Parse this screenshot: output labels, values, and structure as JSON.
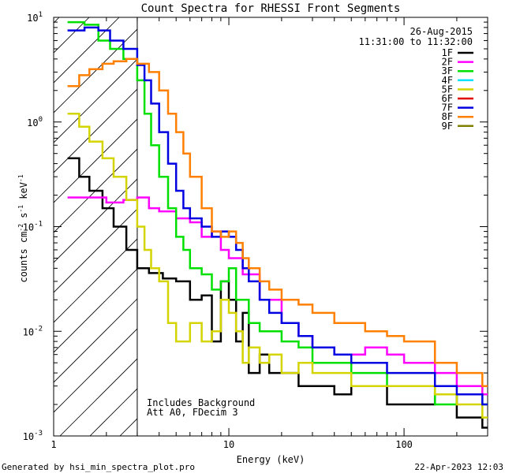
{
  "chart_data": {
    "type": "line",
    "title": "Count Spectra for RHESSI Front Segments",
    "xlabel": "Energy (keV)",
    "ylabel": {
      "base": "counts cm",
      "exp1": "-2",
      "mid": " s",
      "exp2": "-1",
      "tail": " keV",
      "exp3": "-1"
    },
    "xscale": "log",
    "yscale": "log",
    "xlim": [
      1,
      300
    ],
    "ylim": [
      0.001,
      10
    ],
    "x_major_ticks": [
      1,
      10,
      100
    ],
    "x_major_labels": [
      "1",
      "10",
      "100"
    ],
    "y_major_ticks": [
      0.001,
      0.01,
      0.1,
      1,
      10
    ],
    "y_major_labels": [
      {
        "base": "10",
        "exp": "-3"
      },
      {
        "base": "10",
        "exp": "-2"
      },
      {
        "base": "10",
        "exp": "-1"
      },
      {
        "base": "10",
        "exp": "0"
      },
      {
        "base": "10",
        "exp": "1"
      }
    ],
    "info": {
      "date": "26-Aug-2015",
      "time_range": "11:31:00 to 11:32:00"
    },
    "annotations": [
      "Includes Background",
      "Att A0, FDecim 3"
    ],
    "threshold_energy": 3,
    "legend_position": "top-right",
    "legend": [
      {
        "label": "1F",
        "color": "#000000"
      },
      {
        "label": "2F",
        "color": "#ff00ff"
      },
      {
        "label": "3F",
        "color": "#00e000"
      },
      {
        "label": "4F",
        "color": "#00e0ff"
      },
      {
        "label": "5F",
        "color": "#d4d400"
      },
      {
        "label": "6F",
        "color": "#e00000"
      },
      {
        "label": "7F",
        "color": "#0000e0"
      },
      {
        "label": "8F",
        "color": "#ff8000"
      },
      {
        "label": "9F",
        "color": "#808000"
      }
    ],
    "series": [
      {
        "name": "1F",
        "color": "#000000",
        "x": [
          1.2,
          1.4,
          1.6,
          1.9,
          2.2,
          2.6,
          3.0,
          3.5,
          4.2,
          5.0,
          6.0,
          7.0,
          8.0,
          9.0,
          10,
          11,
          12,
          13,
          15,
          17,
          20,
          25,
          30,
          40,
          50,
          60,
          80,
          100,
          150,
          200,
          280
        ],
        "y": [
          0.45,
          0.3,
          0.22,
          0.15,
          0.1,
          0.06,
          0.04,
          0.036,
          0.032,
          0.03,
          0.02,
          0.022,
          0.008,
          0.03,
          0.02,
          0.008,
          0.015,
          0.004,
          0.006,
          0.004,
          0.004,
          0.003,
          0.003,
          0.0025,
          0.003,
          0.003,
          0.002,
          0.002,
          0.0025,
          0.0015,
          0.0012
        ]
      },
      {
        "name": "2F",
        "color": "#ff00ff",
        "x": [
          1.2,
          1.6,
          2.0,
          2.5,
          3.0,
          3.5,
          4.0,
          5.0,
          6.0,
          7.0,
          8.0,
          9.0,
          10,
          12,
          15,
          20,
          25,
          30,
          40,
          50,
          60,
          80,
          100,
          150,
          200,
          280
        ],
        "y": [
          0.19,
          0.19,
          0.17,
          0.18,
          0.19,
          0.15,
          0.14,
          0.12,
          0.11,
          0.08,
          0.09,
          0.06,
          0.05,
          0.035,
          0.02,
          0.012,
          0.009,
          0.007,
          0.006,
          0.006,
          0.007,
          0.006,
          0.005,
          0.004,
          0.003,
          0.0025
        ]
      },
      {
        "name": "3F",
        "color": "#00e000",
        "x": [
          1.2,
          1.5,
          1.8,
          2.1,
          2.5,
          3.0,
          3.3,
          3.6,
          4.0,
          4.5,
          5.0,
          5.5,
          6.0,
          7.0,
          8.0,
          9.0,
          10,
          11,
          12,
          13,
          15,
          17,
          20,
          25,
          30,
          40,
          50,
          60,
          80,
          100,
          150,
          200,
          280
        ],
        "y": [
          9.0,
          8.5,
          6.0,
          5.0,
          4.0,
          2.5,
          1.2,
          0.6,
          0.3,
          0.15,
          0.08,
          0.06,
          0.04,
          0.035,
          0.025,
          0.03,
          0.04,
          0.02,
          0.02,
          0.012,
          0.01,
          0.01,
          0.008,
          0.007,
          0.005,
          0.005,
          0.004,
          0.004,
          0.003,
          0.003,
          0.002,
          0.0025,
          0.002
        ]
      },
      {
        "name": "5F",
        "color": "#d4d400",
        "x": [
          1.2,
          1.4,
          1.6,
          1.9,
          2.2,
          2.6,
          3.0,
          3.3,
          3.6,
          4.0,
          4.5,
          5.0,
          6.0,
          7.0,
          8.0,
          9.0,
          10,
          11,
          12,
          13,
          15,
          17,
          20,
          25,
          30,
          40,
          50,
          60,
          80,
          100,
          150,
          200,
          280
        ],
        "y": [
          1.2,
          0.9,
          0.65,
          0.45,
          0.3,
          0.18,
          0.1,
          0.06,
          0.04,
          0.03,
          0.012,
          0.008,
          0.012,
          0.008,
          0.01,
          0.02,
          0.015,
          0.01,
          0.005,
          0.007,
          0.005,
          0.006,
          0.004,
          0.005,
          0.004,
          0.004,
          0.003,
          0.003,
          0.003,
          0.003,
          0.0025,
          0.002,
          0.0015
        ]
      },
      {
        "name": "7F",
        "color": "#0000e0",
        "x": [
          1.2,
          1.5,
          1.8,
          2.1,
          2.5,
          3.0,
          3.3,
          3.6,
          4.0,
          4.5,
          5.0,
          5.5,
          6.0,
          7.0,
          8.0,
          9.0,
          10,
          11,
          12,
          13,
          15,
          17,
          20,
          25,
          30,
          40,
          50,
          60,
          80,
          100,
          150,
          200,
          280
        ],
        "y": [
          7.5,
          8.0,
          7.5,
          6.0,
          5.0,
          3.5,
          2.5,
          1.5,
          0.8,
          0.4,
          0.22,
          0.15,
          0.12,
          0.1,
          0.08,
          0.09,
          0.08,
          0.06,
          0.04,
          0.03,
          0.02,
          0.015,
          0.012,
          0.009,
          0.007,
          0.006,
          0.005,
          0.005,
          0.004,
          0.004,
          0.003,
          0.0025,
          0.002
        ]
      },
      {
        "name": "8F",
        "color": "#ff8000",
        "x": [
          1.2,
          1.4,
          1.6,
          1.9,
          2.2,
          2.6,
          3.0,
          3.5,
          4.0,
          4.5,
          5.0,
          5.5,
          6.0,
          7.0,
          8.0,
          9.0,
          10,
          11,
          12,
          13,
          15,
          17,
          20,
          25,
          30,
          40,
          50,
          60,
          80,
          100,
          150,
          200,
          280
        ],
        "y": [
          2.2,
          2.8,
          3.2,
          3.6,
          3.8,
          4.0,
          3.6,
          3.0,
          2.0,
          1.2,
          0.8,
          0.5,
          0.3,
          0.15,
          0.09,
          0.08,
          0.09,
          0.07,
          0.05,
          0.04,
          0.03,
          0.025,
          0.02,
          0.018,
          0.015,
          0.012,
          0.012,
          0.01,
          0.009,
          0.008,
          0.005,
          0.004,
          0.003
        ]
      }
    ]
  },
  "footer": {
    "left": "Generated by hsi_min_spectra_plot.pro",
    "right": "22-Apr-2023 12:03"
  }
}
